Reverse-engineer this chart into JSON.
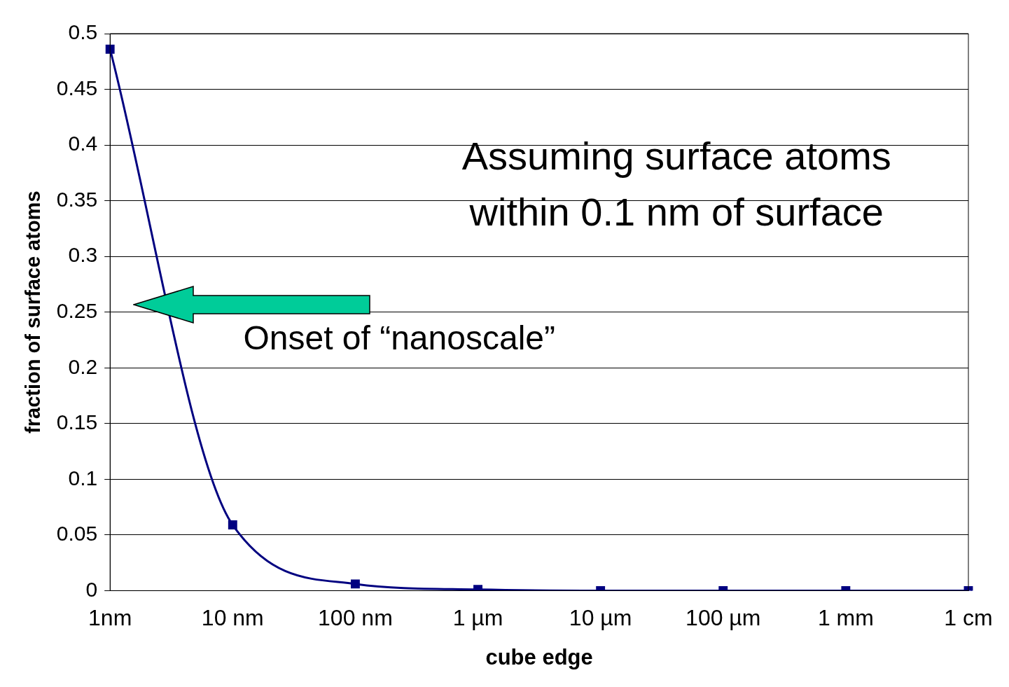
{
  "chart_data": {
    "type": "line",
    "xlabel": "cube edge",
    "ylabel": "fraction of surface atoms",
    "categories": [
      "1nm",
      "10 nm",
      "100 nm",
      "1 µm",
      "10 µm",
      "100 µm",
      "1 mm",
      "1 cm"
    ],
    "series": [
      {
        "color": "#000080",
        "values": [
          0.486,
          0.059,
          0.006,
          0.001,
          0,
          0,
          0,
          0
        ]
      }
    ],
    "ylim": [
      0,
      0.5
    ],
    "yticks": [
      0,
      0.05,
      0.1,
      0.15,
      0.2,
      0.25,
      0.3,
      0.35,
      0.4,
      0.45,
      0.5
    ],
    "grid": "y",
    "legend": false,
    "marker": "square",
    "line_style": "solid",
    "annotations": [
      "Assuming surface atoms\nwithin 0.1 nm of surface",
      "Onset of “nanoscale”"
    ]
  }
}
